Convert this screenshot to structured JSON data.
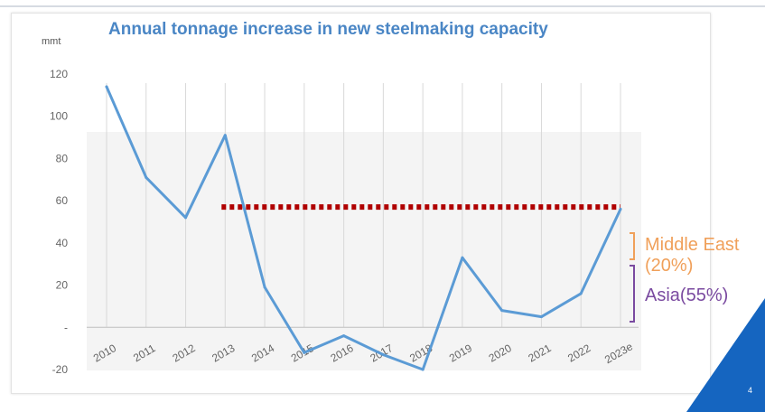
{
  "chart_data": {
    "type": "line",
    "title": "Annual tonnage increase in new steelmaking capacity",
    "ylabel": "mmt",
    "xlabel": "",
    "categories": [
      "2010",
      "2011",
      "2012",
      "2013",
      "2014",
      "2015",
      "2016",
      "2017",
      "2018",
      "2019",
      "2020",
      "2021",
      "2022",
      "2023e"
    ],
    "series": [
      {
        "values": [
          114,
          71,
          52,
          91,
          19,
          -12,
          -4,
          -13,
          -20,
          33,
          8,
          5,
          16,
          56
        ]
      }
    ],
    "reference_line": {
      "value": 57,
      "from": "2013",
      "to": "2023e",
      "style": "dotted"
    },
    "ylim": [
      -20,
      120
    ],
    "yticks": [
      {
        "value": 120,
        "label": "120"
      },
      {
        "value": 100,
        "label": "100"
      },
      {
        "value": 80,
        "label": "80"
      },
      {
        "value": 60,
        "label": "60"
      },
      {
        "value": 40,
        "label": "40"
      },
      {
        "value": 20,
        "label": "20"
      },
      {
        "value": 0,
        "label": "-"
      },
      {
        "value": -20,
        "label": "-20"
      }
    ],
    "grid": "vertical",
    "colors": {
      "line": "#5b9bd5",
      "reference_line": "#b00000",
      "grid": "#d9d9d9",
      "middle_east": "#f0a05a",
      "asia": "#7a4aa0"
    },
    "annotations": {
      "middle_east": "Middle East (20%)",
      "middle_east_line1": "Middle East",
      "middle_east_line2": "(20%)",
      "asia": "Asia(55%)"
    }
  },
  "slide": {
    "page_number": "4",
    "accent_color": "#1565c0"
  }
}
